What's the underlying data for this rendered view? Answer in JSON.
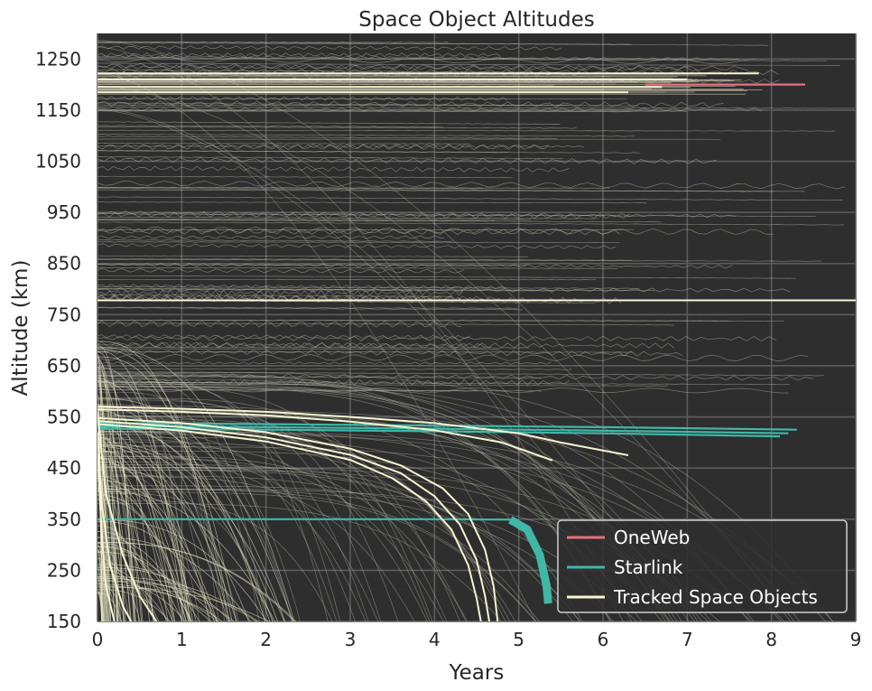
{
  "chart_data": {
    "type": "line",
    "title": "Space Object Altitudes",
    "xlabel": "Years",
    "ylabel": "Altitude (km)",
    "xlim": [
      0,
      9
    ],
    "ylim": [
      150,
      1300
    ],
    "xticks": [
      0,
      1,
      2,
      3,
      4,
      5,
      6,
      7,
      8,
      9
    ],
    "yticks": [
      150,
      250,
      350,
      450,
      550,
      650,
      750,
      850,
      950,
      1050,
      1150,
      1250
    ],
    "grid": true,
    "legend_position": "lower-right",
    "colors": {
      "background": "#2e2e2e",
      "grid": "#5c5c5c",
      "oneweb": "#e8707f",
      "starlink": "#3fb8a8",
      "tracked": "#f8f5d2",
      "background_objects": "#b8b8a8"
    },
    "series": [
      {
        "name": "OneWeb",
        "color": "#e8707f",
        "lines": [
          {
            "x": [
              6.5,
              8.4
            ],
            "y": [
              1200,
              1200
            ]
          }
        ]
      },
      {
        "name": "Starlink",
        "color": "#3fb8a8",
        "lines": [
          {
            "x": [
              0.0,
              4.0,
              4.9,
              5.1,
              5.25,
              5.33,
              5.35
            ],
            "y": [
              350,
              350,
              349,
              330,
              280,
              220,
              185
            ]
          },
          {
            "x": [
              0.0,
              2.0,
              4.0,
              6.0,
              8.3
            ],
            "y": [
              538,
              536,
              533,
              530,
              525
            ]
          },
          {
            "x": [
              0.0,
              2.0,
              4.0,
              6.0,
              8.2
            ],
            "y": [
              532,
              530,
              527,
              523,
              518
            ]
          },
          {
            "x": [
              0.0,
              2.0,
              4.0,
              6.0,
              8.1
            ],
            "y": [
              527,
              525,
              522,
              518,
              512
            ]
          }
        ]
      },
      {
        "name": "Tracked Space Objects",
        "color": "#f8f5d2",
        "lines": [
          {
            "x": [
              0.0,
              9.0
            ],
            "y": [
              778,
              778
            ]
          },
          {
            "x": [
              0.0,
              7.85
            ],
            "y": [
              1222,
              1222
            ]
          },
          {
            "x": [
              0.0,
              7.0
            ],
            "y": [
              1210,
              1210
            ]
          },
          {
            "x": [
              0.0,
              6.7
            ],
            "y": [
              1195,
              1195
            ]
          },
          {
            "x": [
              0.0,
              6.3
            ],
            "y": [
              1185,
              1185
            ]
          },
          {
            "x": [
              0.0,
              1.0,
              2.0,
              3.0,
              4.0,
              5.0,
              5.5,
              6.3
            ],
            "y": [
              570,
              566,
              560,
              550,
              538,
              518,
              500,
              475
            ]
          },
          {
            "x": [
              0.0,
              1.0,
              2.0,
              3.0,
              4.0,
              4.8,
              5.4
            ],
            "y": [
              565,
              560,
              553,
              541,
              524,
              500,
              465
            ]
          },
          {
            "x": [
              0.0,
              1.0,
              2.0,
              3.0,
              3.6,
              4.1,
              4.4,
              4.6,
              4.7,
              4.75
            ],
            "y": [
              548,
              538,
              520,
              488,
              455,
              410,
              360,
              290,
              220,
              150
            ]
          },
          {
            "x": [
              0.0,
              1.0,
              2.0,
              3.0,
              3.6,
              4.0,
              4.3,
              4.5,
              4.6,
              4.65
            ],
            "y": [
              542,
              530,
              510,
              476,
              440,
              395,
              340,
              270,
              200,
              150
            ]
          },
          {
            "x": [
              0.0,
              1.0,
              2.0,
              3.0,
              3.5,
              3.9,
              4.2,
              4.4,
              4.5,
              4.55
            ],
            "y": [
              536,
              523,
              502,
              466,
              430,
              385,
              330,
              260,
              195,
              150
            ]
          },
          {
            "x": [
              0.0,
              0.1,
              0.3,
              0.5,
              0.7
            ],
            "y": [
              560,
              400,
              280,
              200,
              150
            ]
          },
          {
            "x": [
              0.0,
              0.05,
              0.15,
              0.3,
              0.4
            ],
            "y": [
              520,
              380,
              260,
              180,
              150
            ]
          },
          {
            "x": [
              0.0,
              0.05,
              0.1,
              0.2
            ],
            "y": [
              480,
              320,
              220,
              150
            ]
          }
        ]
      }
    ]
  }
}
